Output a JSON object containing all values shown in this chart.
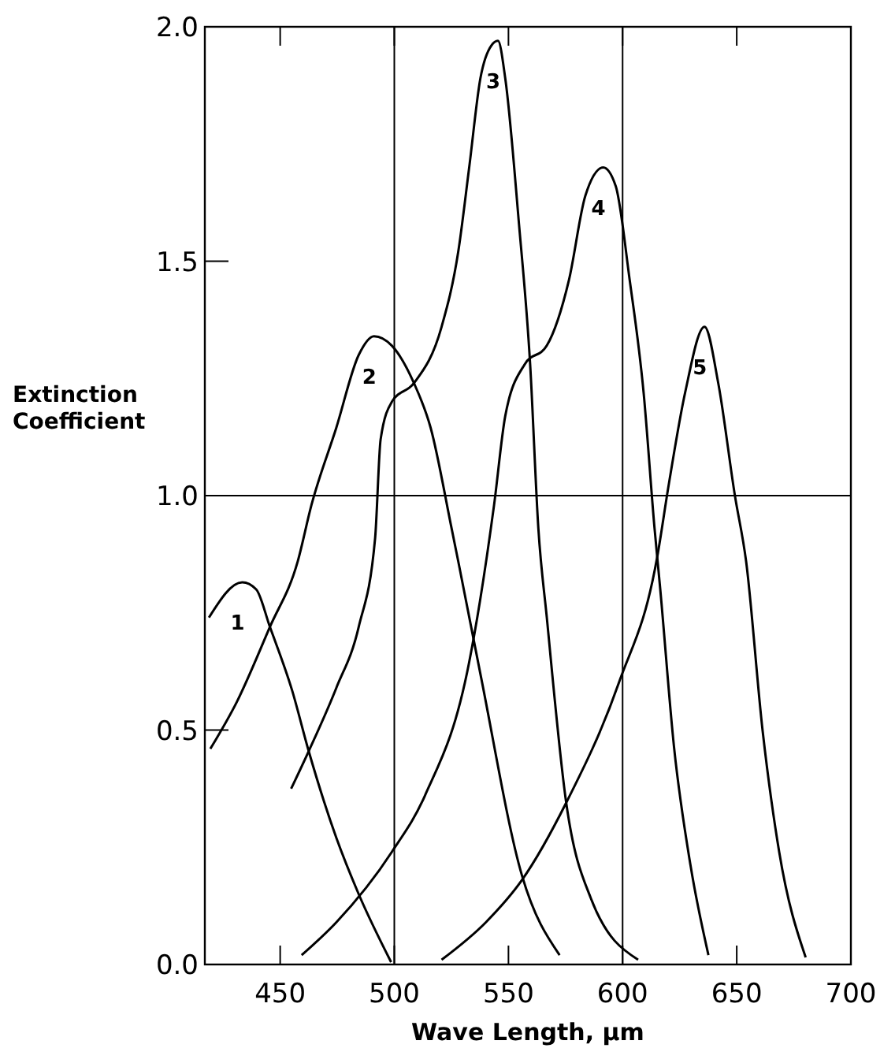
{
  "chart_data": {
    "type": "line",
    "xlabel": "Wave Length, µm",
    "ylabel": "Extinction\nCoefficient",
    "xlim": [
      417,
      700
    ],
    "ylim": [
      0,
      2
    ],
    "xticks": [
      450,
      500,
      550,
      600,
      650,
      700
    ],
    "yticks": [
      {
        "value": 0,
        "label": "0.0"
      },
      {
        "value": 0.5,
        "label": "0.5"
      },
      {
        "value": 1,
        "label": "1.0"
      },
      {
        "value": 1.5,
        "label": "1.5"
      },
      {
        "value": 2,
        "label": "2.0"
      }
    ],
    "grid": false,
    "marker": "none",
    "line_style": "solid",
    "ref_lines": [
      {
        "axis": "x",
        "value": 500,
        "color": "#000000"
      },
      {
        "axis": "x",
        "value": 600,
        "color": "#000000"
      },
      {
        "axis": "y",
        "value": 1,
        "color": "#000000"
      }
    ],
    "series": [
      {
        "name": "1",
        "color": "#000000",
        "x": [
          418.8,
          433.4,
          439.5,
          445.5,
          455.2,
          462.5,
          474.6,
          484.4,
          498.6
        ],
        "values": [
          0.74,
          0.815,
          0.8,
          0.72,
          0.585,
          0.455,
          0.27,
          0.15,
          0.005
        ]
      },
      {
        "name": "2",
        "color": "#000000",
        "x": [
          419.4,
          431,
          445.5,
          457.7,
          463.7,
          474.6,
          484.4,
          491.1,
          498.9,
          508.6,
          515.9,
          525.1,
          528,
          537.7,
          555.9,
          572.4
        ],
        "values": [
          0.46,
          0.56,
          0.72,
          0.86,
          0.98,
          1.145,
          1.3,
          1.34,
          1.32,
          1.24,
          1.145,
          0.93,
          0.86,
          0.62,
          0.19,
          0.02
        ]
      },
      {
        "name": "3",
        "color": "#000000",
        "x": [
          454.8,
          462.5,
          474.6,
          484.4,
          491.6,
          494,
          498.9,
          508.6,
          520.7,
          528,
          532.8,
          537.7,
          542.5,
          545.4,
          548.6,
          554.6,
          559.5,
          563.1,
          566.8,
          575.3,
          586.2,
          606.8
        ],
        "values": [
          0.375,
          0.455,
          0.59,
          0.72,
          0.91,
          1.12,
          1.2,
          1.24,
          1.36,
          1.52,
          1.7,
          1.89,
          1.96,
          1.97,
          1.89,
          1.58,
          1.28,
          0.93,
          0.74,
          0.345,
          0.14,
          0.01
        ]
      },
      {
        "name": "4",
        "color": "#000000",
        "x": [
          459.4,
          474.6,
          498.9,
          513.4,
          532.8,
          543.7,
          548.6,
          557.1,
          566.8,
          576.5,
          583.7,
          591.5,
          597,
          603.1,
          609.2,
          614,
          616.5,
          622.5,
          629.8,
          637.6
        ],
        "values": [
          0.02,
          0.09,
          0.24,
          0.36,
          0.645,
          0.98,
          1.17,
          1.28,
          1.32,
          1.46,
          1.64,
          1.7,
          1.66,
          1.46,
          1.22,
          0.93,
          0.8,
          0.465,
          0.21,
          0.02
        ]
      },
      {
        "name": "5",
        "color": "#000000",
        "x": [
          520.7,
          540.1,
          555.9,
          575.3,
          598.3,
          615.2,
          620.1,
          627.4,
          635.9,
          641.9,
          649.2,
          654.1,
          661.3,
          668.6,
          680.2
        ],
        "values": [
          0.01,
          0.09,
          0.18,
          0.345,
          0.6,
          0.87,
          1.02,
          1.22,
          1.36,
          1.24,
          1,
          0.86,
          0.5,
          0.24,
          0.015
        ]
      }
    ]
  }
}
